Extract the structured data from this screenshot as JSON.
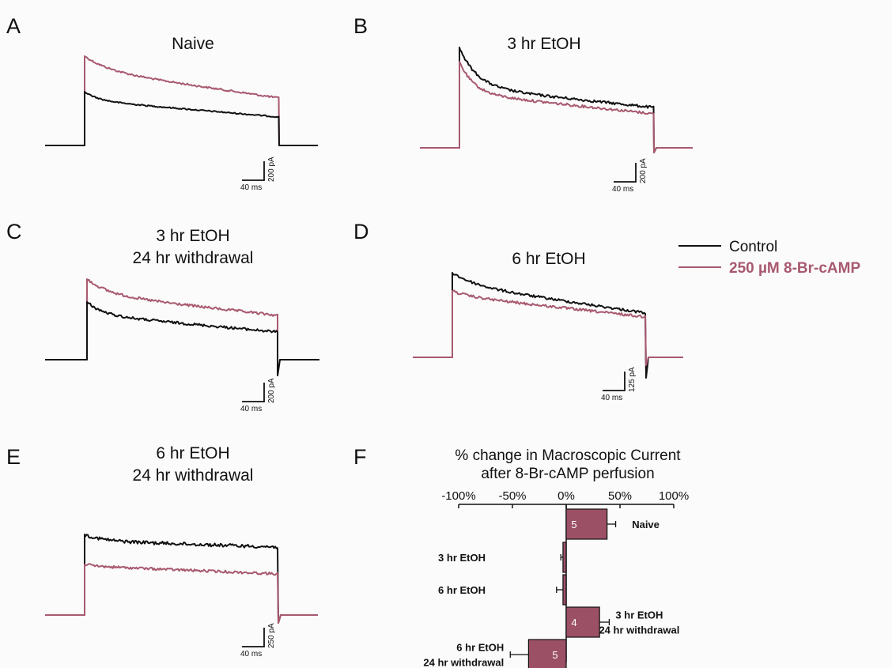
{
  "panels": [
    {
      "letter": "A",
      "title_lines": [
        "Naive"
      ],
      "scale_time": "40 ms",
      "scale_amp": "200 pA"
    },
    {
      "letter": "B",
      "title_lines": [
        "3 hr EtOH"
      ],
      "scale_time": "40 ms",
      "scale_amp": "200 pA"
    },
    {
      "letter": "C",
      "title_lines": [
        "3 hr EtOH",
        "24 hr withdrawal"
      ],
      "scale_time": "40 ms",
      "scale_amp": "200 pA"
    },
    {
      "letter": "D",
      "title_lines": [
        "6 hr EtOH"
      ],
      "scale_time": "40 ms",
      "scale_amp": "125 pA"
    },
    {
      "letter": "E",
      "title_lines": [
        "6 hr EtOH",
        "24 hr withdrawal"
      ],
      "scale_time": "40 ms",
      "scale_amp": "250 pA"
    }
  ],
  "legend": {
    "control": "Control",
    "treatment": "250 µM 8-Br-cAMP"
  },
  "colors": {
    "control": "#111111",
    "treatment": "#a8596f",
    "bar_fill": "#9b5066",
    "text": "#111111"
  },
  "chart_data": [
    {
      "type": "bar",
      "panel": "F",
      "orientation": "horizontal",
      "title": "% change in Macroscopic Current",
      "subtitle": "after 8-Br-cAMP perfusion",
      "xlim": [
        -100,
        100
      ],
      "xticks": [
        "-100%",
        "-50%",
        "0%",
        "50%",
        "100%"
      ],
      "xtick_values": [
        -100,
        -50,
        0,
        50,
        100
      ],
      "categories": [
        [
          "Naive"
        ],
        [
          "3 hr EtOH"
        ],
        [
          "6 hr EtOH"
        ],
        [
          "3 hr EtOH",
          "24 hr withdrawal"
        ],
        [
          "6 hr EtOH",
          "24 hr withdrawal"
        ]
      ],
      "values": [
        38,
        -3,
        -3,
        31,
        -35
      ],
      "errors": [
        8,
        2,
        6,
        9,
        17
      ],
      "n": [
        "5",
        "",
        "",
        "4",
        "5"
      ]
    }
  ]
}
